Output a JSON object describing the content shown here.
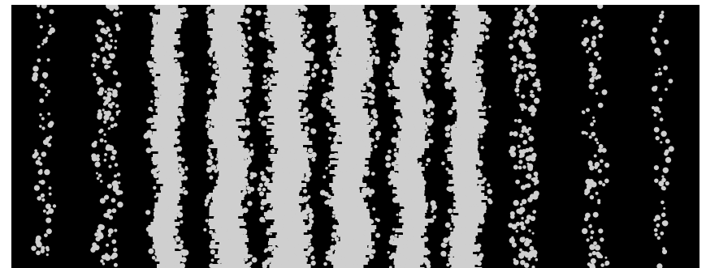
{
  "image": {
    "kind": "interference-pattern-photograph",
    "background_color": "#000000",
    "frame_color": "#ffffff",
    "fringe_color": "#cfcfcf",
    "fringe_count": 11
  }
}
